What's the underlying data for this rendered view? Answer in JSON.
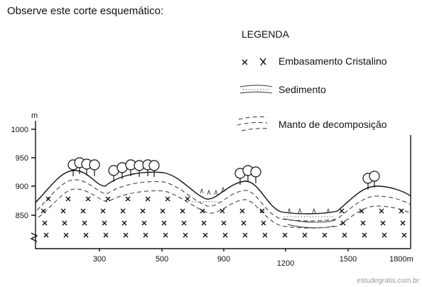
{
  "title": "Observe este corte esquemático:",
  "legend": {
    "title": "LEGENDA",
    "items": [
      "Embasamento Cristalino",
      "Sedimento",
      "Manto de decomposição"
    ]
  },
  "y_axis": {
    "unit": "m",
    "ticks": [
      "1000",
      "950",
      "900",
      "850"
    ]
  },
  "x_axis": {
    "ticks": [
      "300",
      "500",
      "900",
      "1200",
      "1500",
      "1800m"
    ]
  },
  "watermark": "estudegratis.com.br"
}
